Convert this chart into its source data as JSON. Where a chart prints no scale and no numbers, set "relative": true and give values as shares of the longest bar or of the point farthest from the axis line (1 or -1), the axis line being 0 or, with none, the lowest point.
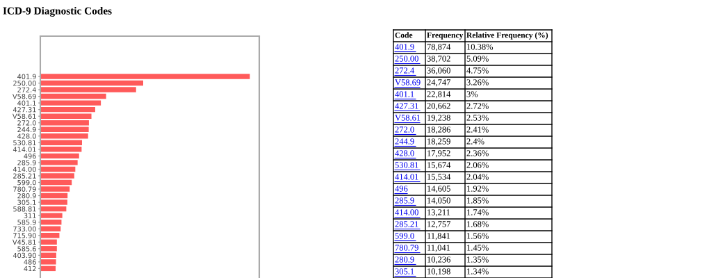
{
  "chart_data": [
    {
      "type": "bar",
      "title": "ICD-9 Diagnostic Codes",
      "orientation": "horizontal",
      "relative": true,
      "color": "#ff5a5a",
      "grid": false,
      "categories": [
        "401.9",
        "250.00",
        "272.4",
        "V58.69",
        "401.1",
        "427.31",
        "V58.61",
        "272.0",
        "244.9",
        "428.0",
        "530.81",
        "414.01",
        "496",
        "285.9",
        "414.00",
        "285.21",
        "599.0",
        "780.79",
        "280.9",
        "305.1",
        "588.81",
        "311",
        "585.9",
        "733.00",
        "715.90",
        "V45.81",
        "585.6",
        "403.90",
        "486",
        "412"
      ],
      "values": [
        1,
        0.491,
        0.457,
        0.314,
        0.289,
        0.262,
        0.244,
        0.232,
        0.231,
        0.228,
        0.199,
        0.197,
        0.185,
        0.178,
        0.167,
        0.162,
        0.15,
        0.14,
        0.13,
        0.129,
        0.124,
        0.105,
        0.101,
        0.097,
        0.091,
        0.079,
        0.079,
        0.076,
        0.075,
        0.073
      ]
    },
    {
      "type": "other",
      "categories": [
        "Code",
        "Frequency",
        "Relative Frequency (%)"
      ],
      "cell_labels": [
        [
          "401.9",
          "78,874",
          "10.38%"
        ],
        [
          "250.00",
          "38,702",
          "5.09%"
        ],
        [
          "272.4",
          "36,060",
          "4.75%"
        ],
        [
          "V58.69",
          "24,747",
          "3.26%"
        ],
        [
          "401.1",
          "22,814",
          "3%"
        ],
        [
          "427.31",
          "20,662",
          "2.72%"
        ],
        [
          "V58.61",
          "19,238",
          "2.53%"
        ],
        [
          "272.0",
          "18,286",
          "2.41%"
        ],
        [
          "244.9",
          "18,259",
          "2.4%"
        ],
        [
          "428.0",
          "17,952",
          "2.36%"
        ],
        [
          "530.81",
          "15,674",
          "2.06%"
        ],
        [
          "414.01",
          "15,534",
          "2.04%"
        ],
        [
          "496",
          "14,605",
          "1.92%"
        ],
        [
          "285.9",
          "14,050",
          "1.85%"
        ],
        [
          "414.00",
          "13,211",
          "1.74%"
        ],
        [
          "285.21",
          "12,757",
          "1.68%"
        ],
        [
          "599.0",
          "11,841",
          "1.56%"
        ],
        [
          "780.79",
          "11,041",
          "1.45%"
        ],
        [
          "280.9",
          "10,236",
          "1.35%"
        ],
        [
          "305.1",
          "10,198",
          "1.34%"
        ]
      ]
    }
  ]
}
